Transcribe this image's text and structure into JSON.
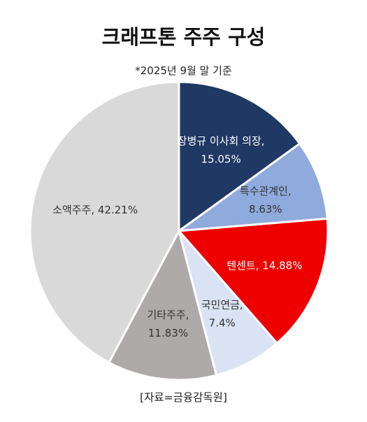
{
  "title": "크래프톤 주주 구성",
  "subtitle": "*2025년 9월 말 기준",
  "source": "[자료=금융감독원]",
  "chart_data": {
    "type": "pie",
    "title": "크래프톤 주주 구성",
    "subtitle": "*2025년 9월 말 기준",
    "start_angle_deg": 0,
    "direction": "clockwise",
    "slices": [
      {
        "name": "장병규 이사회 의장,",
        "value": 15.05,
        "value_label": "15.05%",
        "color": "#1f3864",
        "text_color": "#ffffff"
      },
      {
        "name": "특수관계인,",
        "value": 8.63,
        "value_label": "8.63%",
        "color": "#8faadc",
        "text_color": "#333333"
      },
      {
        "name": "텐센트",
        "value": 14.88,
        "value_label": "14.88%",
        "color": "#ee0000",
        "text_color": "#ffffff",
        "single_line": true
      },
      {
        "name": "국민연금,",
        "value": 7.4,
        "value_label": "7.4%",
        "color": "#dae3f3",
        "text_color": "#333333"
      },
      {
        "name": "기타주주,",
        "value": 11.83,
        "value_label": "11.83%",
        "color": "#aeaaaa",
        "text_color": "#333333"
      },
      {
        "name": "소액주주",
        "value": 42.21,
        "value_label": "42.21%",
        "color": "#d9d9d9",
        "text_color": "#333333",
        "single_line": true
      }
    ]
  }
}
